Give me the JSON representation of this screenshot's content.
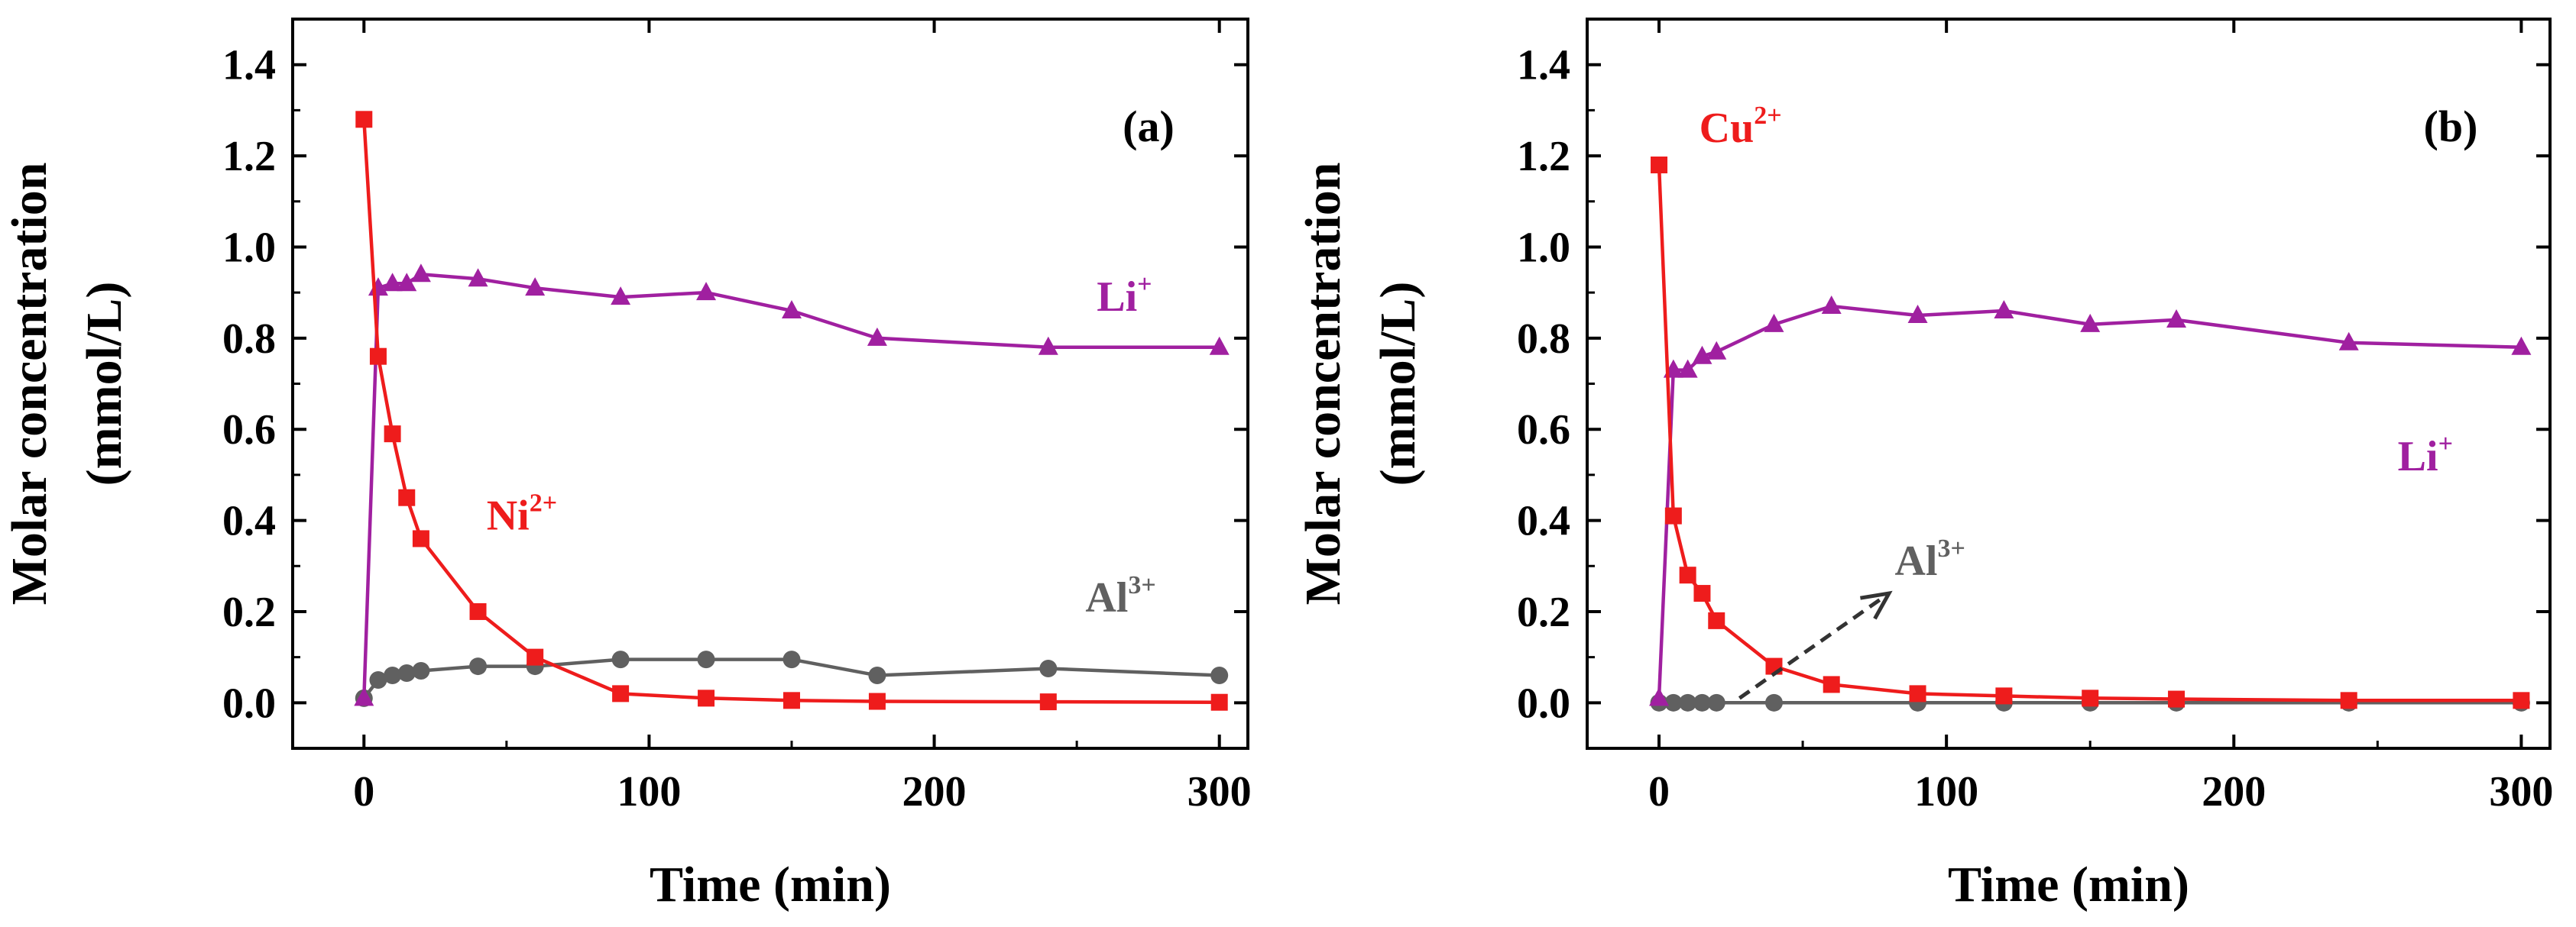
{
  "chart_data": [
    {
      "type": "line",
      "panel_label": "(a)",
      "xlabel": "Time (min)",
      "ylabel_line1": "Molar concentration",
      "ylabel_line2": "(mmol/L)",
      "xlim": [
        -25,
        310
      ],
      "ylim": [
        -0.1,
        1.5
      ],
      "xticks": [
        0,
        100,
        200,
        300
      ],
      "xtick_labels": [
        "0",
        "100",
        "200",
        "300"
      ],
      "yticks": [
        0.0,
        0.2,
        0.4,
        0.6,
        0.8,
        1.0,
        1.2,
        1.4
      ],
      "ytick_labels": [
        "0.0",
        "0.2",
        "0.4",
        "0.6",
        "0.8",
        "1.0",
        "1.2",
        "1.4"
      ],
      "series": [
        {
          "name": "Ni2+",
          "base": "Ni",
          "charge": "2+",
          "color": "#ee1c1c",
          "marker": "square",
          "x": [
            0,
            5,
            10,
            15,
            20,
            40,
            60,
            90,
            120,
            150,
            180,
            240,
            300
          ],
          "y": [
            1.28,
            0.76,
            0.59,
            0.45,
            0.36,
            0.2,
            0.1,
            0.02,
            0.01,
            0.005,
            0.003,
            0.002,
            0.001
          ]
        },
        {
          "name": "Li+",
          "base": "Li",
          "charge": "+",
          "color": "#a020a0",
          "marker": "triangle",
          "x": [
            0,
            5,
            10,
            15,
            20,
            40,
            60,
            90,
            120,
            150,
            180,
            240,
            300
          ],
          "y": [
            0.01,
            0.91,
            0.92,
            0.92,
            0.94,
            0.93,
            0.91,
            0.89,
            0.9,
            0.86,
            0.8,
            0.78,
            0.78
          ]
        },
        {
          "name": "Al3+",
          "base": "Al",
          "charge": "3+",
          "color": "#606060",
          "marker": "circle",
          "x": [
            0,
            5,
            10,
            15,
            20,
            40,
            60,
            90,
            120,
            150,
            180,
            240,
            300
          ],
          "y": [
            0.01,
            0.05,
            0.06,
            0.065,
            0.07,
            0.08,
            0.08,
            0.095,
            0.095,
            0.095,
            0.06,
            0.075,
            0.06
          ]
        }
      ],
      "annotations": [
        {
          "base": "Li",
          "charge": "+",
          "color": "#a020a0",
          "x": 257,
          "y": 0.86
        },
        {
          "base": "Ni",
          "charge": "2+",
          "color": "#ee1c1c",
          "x": 43,
          "y": 0.38
        },
        {
          "base": "Al",
          "charge": "3+",
          "color": "#606060",
          "x": 253,
          "y": 0.2
        }
      ]
    },
    {
      "type": "line",
      "panel_label": "(b)",
      "xlabel": "Time (min)",
      "ylabel_line1": "Molar concentration",
      "ylabel_line2": "(mmol/L)",
      "xlim": [
        -25,
        310
      ],
      "ylim": [
        -0.1,
        1.5
      ],
      "xticks": [
        0,
        100,
        200,
        300
      ],
      "xtick_labels": [
        "0",
        "100",
        "200",
        "300"
      ],
      "yticks": [
        0.0,
        0.2,
        0.4,
        0.6,
        0.8,
        1.0,
        1.2,
        1.4
      ],
      "ytick_labels": [
        "0.0",
        "0.2",
        "0.4",
        "0.6",
        "0.8",
        "1.0",
        "1.2",
        "1.4"
      ],
      "series": [
        {
          "name": "Cu2+",
          "base": "Cu",
          "charge": "2+",
          "color": "#ee1c1c",
          "marker": "square",
          "x": [
            0,
            5,
            10,
            15,
            20,
            40,
            60,
            90,
            120,
            150,
            180,
            240,
            300
          ],
          "y": [
            1.18,
            0.41,
            0.28,
            0.24,
            0.18,
            0.08,
            0.04,
            0.02,
            0.015,
            0.01,
            0.008,
            0.005,
            0.005
          ]
        },
        {
          "name": "Li+",
          "base": "Li",
          "charge": "+",
          "color": "#a020a0",
          "marker": "triangle",
          "x": [
            0,
            5,
            10,
            15,
            20,
            40,
            60,
            90,
            120,
            150,
            180,
            240,
            300
          ],
          "y": [
            0.01,
            0.73,
            0.73,
            0.76,
            0.77,
            0.83,
            0.87,
            0.85,
            0.86,
            0.83,
            0.84,
            0.79,
            0.78
          ]
        },
        {
          "name": "Al3+",
          "base": "Al",
          "charge": "3+",
          "color": "#606060",
          "marker": "circle",
          "x": [
            0,
            5,
            10,
            15,
            20,
            40,
            90,
            120,
            150,
            180,
            240,
            300
          ],
          "y": [
            0.0,
            0.0,
            0.0,
            0.0,
            0.0,
            0.0,
            0.0,
            0.0,
            0.0,
            0.0,
            0.0,
            0.0
          ]
        }
      ],
      "annotations": [
        {
          "base": "Cu",
          "charge": "2+",
          "color": "#ee1c1c",
          "x": 14,
          "y": 1.23
        },
        {
          "base": "Li",
          "charge": "+",
          "color": "#a020a0",
          "x": 257,
          "y": 0.51
        },
        {
          "base": "Al",
          "charge": "3+",
          "color": "#606060",
          "x": 82,
          "y": 0.28
        }
      ],
      "arrow": {
        "color": "#333333",
        "from": [
          28,
          0.01
        ],
        "to": [
          80,
          0.24
        ]
      }
    }
  ]
}
